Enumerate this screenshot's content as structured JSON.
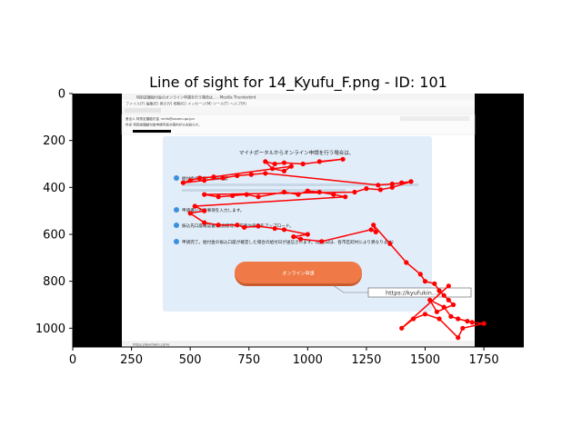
{
  "chart_data": {
    "type": "scatter",
    "title": "Line of sight for 14_Kyufu_F.png - ID: 101",
    "xlabel": "",
    "ylabel": "",
    "xlim": [
      0,
      1920
    ],
    "ylim": [
      1080,
      0
    ],
    "x_ticks": [
      0,
      250,
      500,
      750,
      1000,
      1250,
      1500,
      1750
    ],
    "y_ticks": [
      0,
      200,
      400,
      600,
      800,
      1000
    ],
    "grid": false,
    "series_color": "#ff0000",
    "gaze_points": [
      [
        1050,
        290
      ],
      [
        1150,
        280
      ],
      [
        980,
        300
      ],
      [
        900,
        295
      ],
      [
        860,
        300
      ],
      [
        820,
        290
      ],
      [
        850,
        320
      ],
      [
        900,
        330
      ],
      [
        930,
        310
      ],
      [
        600,
        355
      ],
      [
        540,
        360
      ],
      [
        500,
        370
      ],
      [
        470,
        380
      ],
      [
        560,
        370
      ],
      [
        640,
        360
      ],
      [
        700,
        350
      ],
      [
        760,
        345
      ],
      [
        820,
        340
      ],
      [
        1300,
        390
      ],
      [
        1360,
        385
      ],
      [
        1400,
        380
      ],
      [
        1440,
        375
      ],
      [
        1360,
        400
      ],
      [
        1310,
        410
      ],
      [
        1250,
        405
      ],
      [
        1200,
        420
      ],
      [
        560,
        430
      ],
      [
        620,
        440
      ],
      [
        680,
        435
      ],
      [
        740,
        430
      ],
      [
        790,
        440
      ],
      [
        900,
        420
      ],
      [
        960,
        430
      ],
      [
        1000,
        415
      ],
      [
        1050,
        420
      ],
      [
        1110,
        430
      ],
      [
        1160,
        440
      ],
      [
        520,
        480
      ],
      [
        560,
        500
      ],
      [
        500,
        510
      ],
      [
        560,
        550
      ],
      [
        620,
        560
      ],
      [
        700,
        560
      ],
      [
        730,
        570
      ],
      [
        790,
        565
      ],
      [
        860,
        575
      ],
      [
        900,
        580
      ],
      [
        1000,
        600
      ],
      [
        940,
        610
      ],
      [
        970,
        620
      ],
      [
        1060,
        630
      ],
      [
        1270,
        580
      ],
      [
        1290,
        590
      ],
      [
        1280,
        560
      ],
      [
        1350,
        640
      ],
      [
        1420,
        720
      ],
      [
        1480,
        770
      ],
      [
        1500,
        800
      ],
      [
        1540,
        810
      ],
      [
        1560,
        840
      ],
      [
        1580,
        860
      ],
      [
        1600,
        880
      ],
      [
        1620,
        900
      ],
      [
        1550,
        930
      ],
      [
        1520,
        880
      ],
      [
        1580,
        910
      ],
      [
        1610,
        950
      ],
      [
        1640,
        960
      ],
      [
        1680,
        970
      ],
      [
        1700,
        975
      ],
      [
        1750,
        980
      ],
      [
        1660,
        1000
      ],
      [
        1640,
        1040
      ],
      [
        1560,
        960
      ],
      [
        1500,
        940
      ],
      [
        1450,
        960
      ],
      [
        1400,
        1000
      ],
      [
        1600,
        820
      ]
    ]
  },
  "screenshot": {
    "window_title": "特別定額給付金のオンライン申請を行う場合は... - Mozilla Thunderbird",
    "menu_bar": "ファイル(F)  編集(E)  表示(V)  移動(G)  メッセージ(M)  ツール(T)  ヘルプ(H)",
    "from_line": "差出人 特別定額給付金 <info@soumu.go.jp>",
    "subject_line": "件名 特別定額給付金申請手続き案内がのお知らせ。",
    "card_heading": "マイナポータルからオンライン申請を行う場合は、",
    "card_lines": [
      "給付金の受取口座の確認",
      "申請書に必要事項を入力します。",
      "振込先口座確認書類(通帳等)の写真や画像をアップロード。",
      "申請完了。給付金の振込口座が確定した場合の給付日が送信されます。(給付日は、各市区町村により異なります)"
    ],
    "button_label": "オンライン申請",
    "url_tooltip": "https://kyufukin.../",
    "status_bar": "https://kyufukin.com/"
  }
}
